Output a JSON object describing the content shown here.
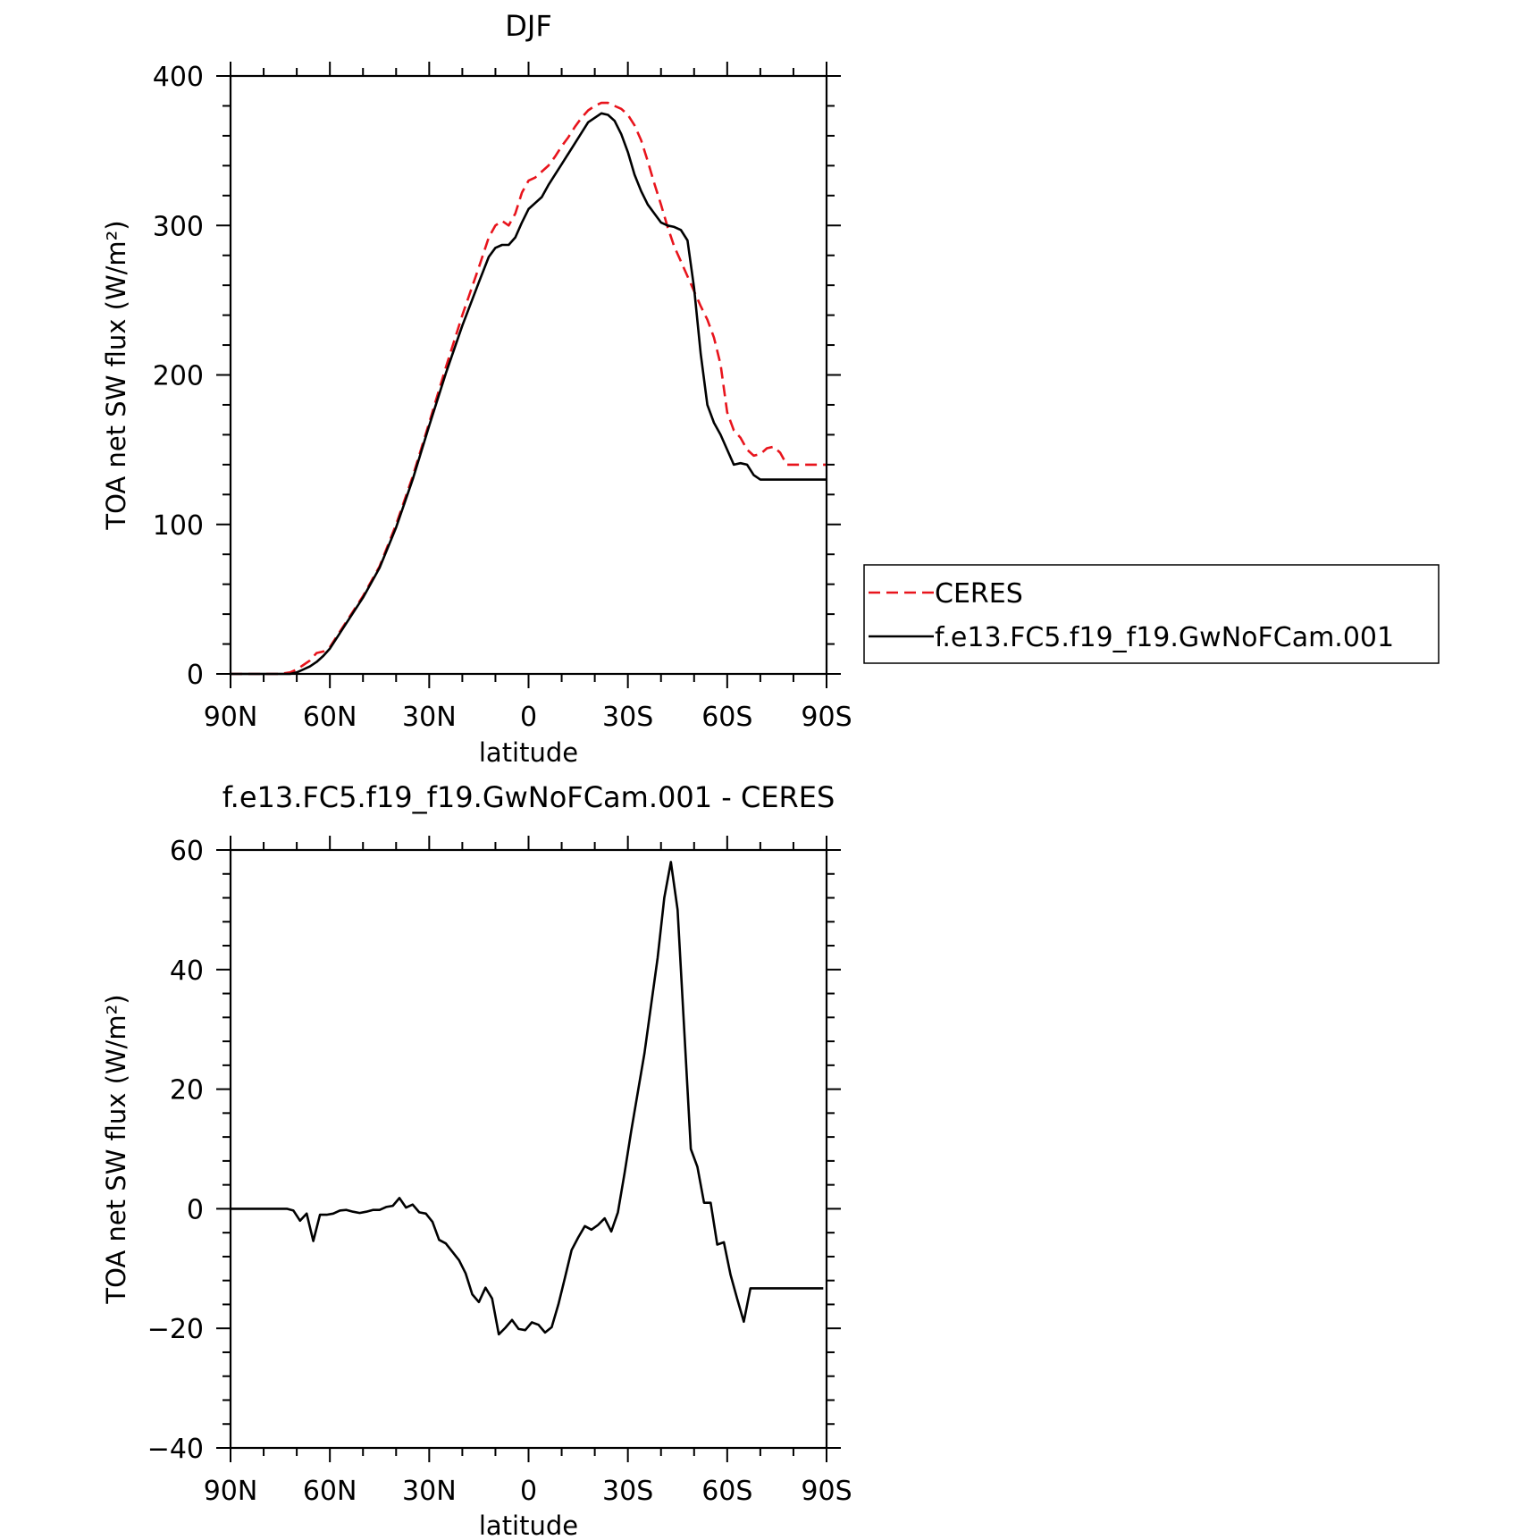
{
  "chart_data": [
    {
      "type": "line",
      "title": "DJF",
      "xlabel": "latitude",
      "ylabel": "TOA net SW flux (W/m²)",
      "xlim": [
        90,
        -90
      ],
      "ylim": [
        0,
        400
      ],
      "xticks": [
        90,
        60,
        30,
        0,
        -30,
        -60,
        -90
      ],
      "xtick_labels": [
        "90N",
        "60N",
        "30N",
        "0",
        "30S",
        "60S",
        "90S"
      ],
      "yticks": [
        0,
        100,
        200,
        300,
        400
      ],
      "ytick_labels": [
        "0",
        "100",
        "200",
        "300",
        "400"
      ],
      "grid": false,
      "legend": "outside-right",
      "series": [
        {
          "name": "CERES",
          "color": "#e8141c",
          "style": "dashed",
          "x": [
            90,
            85,
            80,
            75,
            72,
            70,
            68,
            66,
            64,
            62,
            60,
            55,
            50,
            45,
            40,
            35,
            30,
            25,
            20,
            15,
            12,
            10,
            8,
            6,
            4,
            2,
            0,
            -2,
            -4,
            -6,
            -8,
            -10,
            -12,
            -14,
            -16,
            -18,
            -20,
            -22,
            -24,
            -26,
            -28,
            -30,
            -32,
            -34,
            -36,
            -38,
            -40,
            -42,
            -44,
            -46,
            -48,
            -50,
            -52,
            -54,
            -56,
            -58,
            -60,
            -62,
            -64,
            -66,
            -68,
            -70,
            -72,
            -74,
            -76,
            -78,
            -80,
            -82,
            -84,
            -86,
            -88,
            -90
          ],
          "y": [
            0,
            0,
            0,
            0,
            1,
            3,
            6,
            9,
            14,
            15,
            18,
            35,
            52,
            72,
            100,
            132,
            168,
            205,
            240,
            272,
            292,
            300,
            303,
            300,
            308,
            322,
            330,
            332,
            336,
            340,
            346,
            353,
            359,
            366,
            372,
            377,
            380,
            382,
            382,
            380,
            378,
            374,
            367,
            357,
            343,
            328,
            314,
            299,
            286,
            276,
            266,
            256,
            246,
            237,
            225,
            207,
            175,
            163,
            158,
            150,
            146,
            147,
            151,
            152,
            148,
            140,
            140,
            140,
            140,
            140,
            140,
            140
          ]
        },
        {
          "name": "f.e13.FC5.f19_f19.GwNoFCam.001",
          "color": "#000000",
          "style": "solid",
          "x": [
            90,
            85,
            80,
            75,
            72,
            70,
            68,
            66,
            64,
            62,
            60,
            55,
            50,
            45,
            40,
            35,
            30,
            25,
            20,
            15,
            12,
            10,
            8,
            6,
            4,
            2,
            0,
            -2,
            -4,
            -6,
            -8,
            -10,
            -12,
            -14,
            -16,
            -18,
            -20,
            -22,
            -24,
            -26,
            -28,
            -30,
            -32,
            -34,
            -36,
            -38,
            -40,
            -42,
            -44,
            -46,
            -48,
            -50,
            -52,
            -54,
            -56,
            -58,
            -60,
            -62,
            -64,
            -66,
            -68,
            -70,
            -72,
            -74,
            -76,
            -78,
            -80,
            -82,
            -84,
            -86,
            -88,
            -90
          ],
          "y": [
            0,
            0,
            0,
            0,
            0,
            1,
            3,
            5,
            8,
            12,
            17,
            34,
            51,
            71,
            98,
            130,
            166,
            201,
            233,
            262,
            279,
            285,
            287,
            287,
            292,
            302,
            311,
            315,
            319,
            327,
            334,
            341,
            348,
            355,
            362,
            369,
            372,
            375,
            374,
            370,
            361,
            349,
            334,
            323,
            314,
            308,
            302,
            300,
            299,
            297,
            290,
            258,
            214,
            180,
            168,
            160,
            150,
            140,
            141,
            140,
            133,
            130,
            130,
            130,
            130,
            130,
            130,
            130,
            130,
            130,
            130,
            130
          ]
        }
      ]
    },
    {
      "type": "line",
      "title": "f.e13.FC5.f19_f19.GwNoFCam.001 - CERES",
      "xlabel": "latitude",
      "ylabel": "TOA net SW flux (W/m²)",
      "xlim": [
        90,
        -90
      ],
      "ylim": [
        -40,
        60
      ],
      "xticks": [
        90,
        60,
        30,
        0,
        -30,
        -60,
        -90
      ],
      "xtick_labels": [
        "90N",
        "60N",
        "30N",
        "0",
        "30S",
        "60S",
        "90S"
      ],
      "yticks": [
        -40,
        -20,
        0,
        20,
        40,
        60
      ],
      "ytick_labels": [
        "−40",
        "−20",
        "0",
        "20",
        "40",
        "60"
      ],
      "grid": false,
      "series": [
        {
          "color": "#000000",
          "style": "solid",
          "x": [
            90,
            85,
            80,
            76,
            73,
            71,
            69,
            67,
            65,
            63,
            61,
            59,
            57,
            55,
            53,
            51,
            49,
            47,
            45,
            43,
            41,
            39,
            37,
            35,
            33,
            31,
            29,
            27,
            25,
            23,
            21,
            19,
            17,
            15,
            13,
            11,
            9,
            7,
            5,
            3,
            1,
            -1,
            -3,
            -5,
            -7,
            -9,
            -11,
            -13,
            -15,
            -17,
            -19,
            -21,
            -23,
            -25,
            -27,
            -29,
            -31,
            -33,
            -35,
            -37,
            -39,
            -41,
            -43,
            -45,
            -47,
            -49,
            -51,
            -53,
            -55,
            -57,
            -59,
            -61,
            -63,
            -65,
            -67,
            -69,
            -71,
            -73,
            -75,
            -77,
            -79,
            -81,
            -83,
            -85,
            -87,
            -89
          ],
          "y": [
            0,
            0,
            0,
            0,
            0,
            -0.3,
            -2.0,
            -0.8,
            -5.4,
            -1.0,
            -1.0,
            -0.8,
            -0.3,
            -0.2,
            -0.5,
            -0.7,
            -0.5,
            -0.2,
            -0.2,
            0.3,
            0.5,
            1.8,
            0.2,
            0.7,
            -0.6,
            -0.8,
            -2.2,
            -5.2,
            -5.8,
            -7.2,
            -8.6,
            -10.8,
            -14.3,
            -15.6,
            -13.2,
            -15.0,
            -21.0,
            -19.9,
            -18.6,
            -20.1,
            -20.3,
            -19.0,
            -19.4,
            -20.7,
            -19.8,
            -16.0,
            -11.5,
            -6.9,
            -4.8,
            -2.9,
            -3.5,
            -2.7,
            -1.6,
            -3.8,
            -0.6,
            6.0,
            13.0,
            19.5,
            26.0,
            34.0,
            42.0,
            52.0,
            58.0,
            50.0,
            30.0,
            10.0,
            7.0,
            1.0,
            1.0,
            -6.0,
            -5.6,
            -11.0,
            -15.0,
            -18.9,
            -13.3,
            -13.3,
            -13.3,
            -13.3,
            -13.3,
            -13.3,
            -13.3,
            -13.3,
            -13.3,
            -13.3,
            -13.3,
            -13.3
          ]
        }
      ]
    }
  ]
}
